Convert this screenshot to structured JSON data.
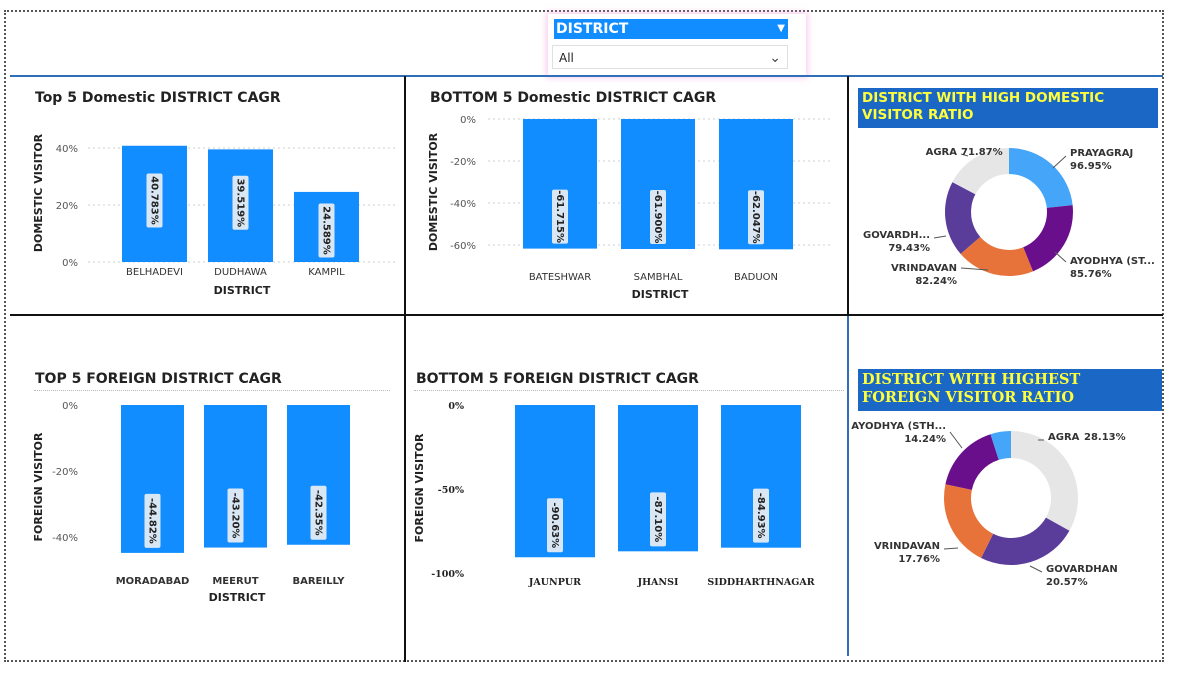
{
  "slicer": {
    "title": "DISTRICT",
    "value": "All"
  },
  "colors": {
    "bar": "#118dff",
    "label_box": "#d9e7f5",
    "donut_title_bg": "#1a67c6",
    "donut_title_text": "#ffff3c"
  },
  "chart_data": [
    {
      "type": "bar",
      "title": "Top 5 Domestic DISTRICT CAGR",
      "xlabel": "DISTRICT",
      "ylabel": "DOMESTIC VISITOR",
      "categories": [
        "BELHADEVI",
        "DUDHAWA",
        "KAMPIL"
      ],
      "values": [
        40.783,
        39.519,
        24.589
      ],
      "value_labels": [
        "40.783%",
        "39.519%",
        "24.589%"
      ],
      "ylim": [
        0,
        40
      ],
      "yticks": [
        "0%",
        "20%",
        "40%"
      ],
      "grid": true
    },
    {
      "type": "bar",
      "title": "BOTTOM 5 Domestic DISTRICT CAGR",
      "xlabel": "DISTRICT",
      "ylabel": "DOMESTIC VISITOR",
      "categories": [
        "BATESHWAR",
        "SAMBHAL",
        "BADUON"
      ],
      "values": [
        -61.715,
        -61.9,
        -62.047
      ],
      "value_labels": [
        "-61.715%",
        "-61.900%",
        "-62.047%"
      ],
      "ylim": [
        -60,
        0
      ],
      "yticks": [
        "0%",
        "-20%",
        "-40%",
        "-60%"
      ],
      "grid": true
    },
    {
      "type": "bar",
      "title": "TOP 5 FOREIGN DISTRICT CAGR",
      "xlabel": "DISTRICT",
      "ylabel": "FOREIGN VISITOR",
      "categories": [
        "MORADABAD",
        "MEERUT",
        "BAREILLY"
      ],
      "values": [
        -44.82,
        -43.2,
        -42.35
      ],
      "value_labels": [
        "-44.82%",
        "-43.20%",
        "-42.35%"
      ],
      "ylim": [
        -40,
        0
      ],
      "yticks": [
        "0%",
        "-20%",
        "-40%"
      ],
      "grid": false
    },
    {
      "type": "bar",
      "title": "BOTTOM 5 FOREIGN DISTRICT CAGR",
      "xlabel": "",
      "ylabel": "FOREIGN VISITOR",
      "categories": [
        "JAUNPUR",
        "JHANSI",
        "SIDDHARTHNAGAR"
      ],
      "values": [
        -90.63,
        -87.1,
        -84.93
      ],
      "value_labels": [
        "-90.63%",
        "-87.10%",
        "-84.93%"
      ],
      "ylim": [
        -100,
        0
      ],
      "yticks": [
        "0%",
        "-50%",
        "-100%"
      ],
      "grid": false
    },
    {
      "type": "pie",
      "title": "DISTRICT WITH HIGH DOMESTIC VISITOR RATIO",
      "slices": [
        {
          "label": "PRAYAGRAJ",
          "value": 96.95,
          "value_label": "96.95%",
          "color": "#45a5f8"
        },
        {
          "label": "AYODHYA (ST...",
          "value": 85.76,
          "value_label": "85.76%",
          "color": "#6a0f8c"
        },
        {
          "label": "VRINDAVAN",
          "value": 82.24,
          "value_label": "82.24%",
          "color": "#e8733a"
        },
        {
          "label": "GOVARDH...",
          "value": 79.43,
          "value_label": "79.43%",
          "color": "#5a3d9a"
        },
        {
          "label": "AGRA",
          "value": 71.87,
          "value_label": "71.87%",
          "color": "#e6e6e6"
        }
      ]
    },
    {
      "type": "pie",
      "title": "DISTRICT WITH HIGHEST FOREIGN VISITOR RATIO",
      "slices": [
        {
          "label": "AGRA",
          "value": 28.13,
          "value_label": "28.13%",
          "color": "#e6e6e6"
        },
        {
          "label": "GOVARDHAN",
          "value": 20.57,
          "value_label": "20.57%",
          "color": "#5a3d9a"
        },
        {
          "label": "VRINDAVAN",
          "value": 17.76,
          "value_label": "17.76%",
          "color": "#e8733a"
        },
        {
          "label": "AYODHYA (STH...",
          "value": 14.24,
          "value_label": "14.24%",
          "color": "#6a0f8c"
        },
        {
          "label": "",
          "value": 4.2,
          "value_label": "",
          "color": "#45a5f8"
        }
      ]
    }
  ]
}
